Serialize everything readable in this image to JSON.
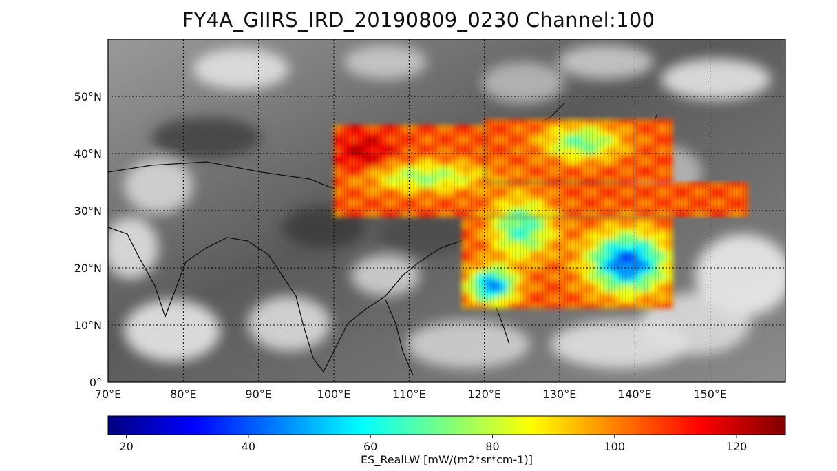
{
  "title": "FY4A_GIIRS_IRD_20190809_0230 Channel:100",
  "map": {
    "projection": "PlateCarree",
    "lon_range": [
      70,
      160
    ],
    "lat_range": [
      0,
      60
    ],
    "gridlines": true,
    "background": "grayscale IR cloud imagery",
    "lon_ticks": [
      {
        "value": 70,
        "label": "70°E"
      },
      {
        "value": 80,
        "label": "80°E"
      },
      {
        "value": 90,
        "label": "90°E"
      },
      {
        "value": 100,
        "label": "100°E"
      },
      {
        "value": 110,
        "label": "110°E"
      },
      {
        "value": 120,
        "label": "120°E"
      },
      {
        "value": 130,
        "label": "130°E"
      },
      {
        "value": 140,
        "label": "140°E"
      },
      {
        "value": 150,
        "label": "150°E"
      }
    ],
    "lat_ticks": [
      {
        "value": 0,
        "label": "0°"
      },
      {
        "value": 10,
        "label": "10°N"
      },
      {
        "value": 20,
        "label": "20°N"
      },
      {
        "value": 30,
        "label": "30°N"
      },
      {
        "value": 40,
        "label": "40°N"
      },
      {
        "value": 50,
        "label": "50°N"
      }
    ]
  },
  "overlay": {
    "type": "heatmap",
    "variable": "ES_RealLW",
    "swaths": [
      {
        "lon": [
          100,
          120
        ],
        "lat": [
          29,
          45
        ]
      },
      {
        "lon": [
          120,
          145
        ],
        "lat": [
          35,
          46
        ]
      },
      {
        "lon": [
          118,
          155
        ],
        "lat": [
          29,
          35
        ]
      },
      {
        "lon": [
          117,
          145
        ],
        "lat": [
          13,
          29
        ]
      }
    ],
    "colormap": "jet"
  },
  "colorbar": {
    "range": [
      17,
      128
    ],
    "ticks": [
      {
        "value": 20,
        "label": "20"
      },
      {
        "value": 40,
        "label": "40"
      },
      {
        "value": 60,
        "label": "60"
      },
      {
        "value": 80,
        "label": "80"
      },
      {
        "value": 100,
        "label": "100"
      },
      {
        "value": 120,
        "label": "120"
      }
    ],
    "label": "ES_RealLW [mW/(m2*sr*cm-1)]",
    "colors": [
      "#00007f",
      "#0000ff",
      "#007fff",
      "#00ffff",
      "#7fff7f",
      "#ffff00",
      "#ff7f00",
      "#ff0000",
      "#7f0000"
    ]
  }
}
